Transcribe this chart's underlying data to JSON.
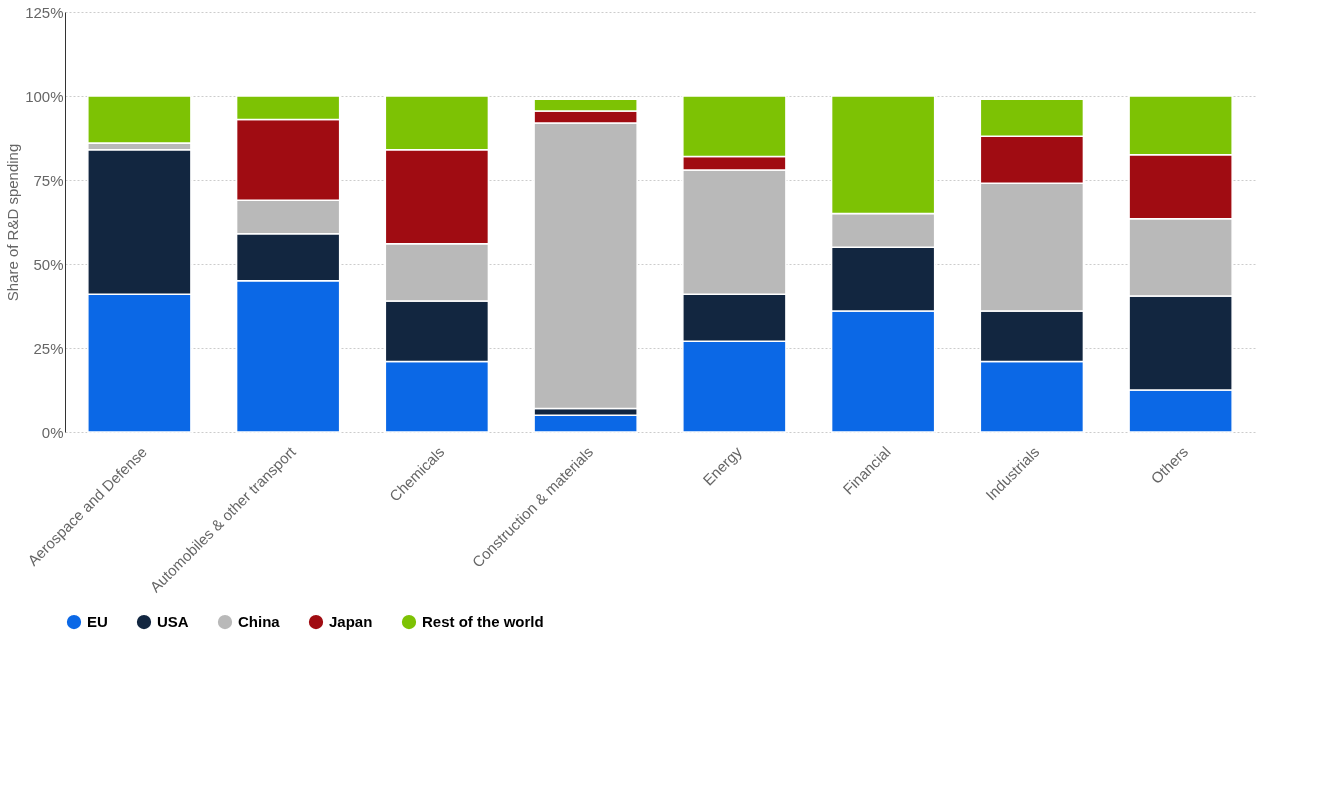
{
  "chart_data": {
    "type": "bar",
    "stacked": true,
    "ylabel": "Share of R&D spending",
    "categories": [
      "Aerospace and Defense",
      "Automobiles & other transport",
      "Chemicals",
      "Construction & materials",
      "Energy",
      "Financial",
      "Industrials",
      "Others"
    ],
    "series": [
      {
        "name": "EU",
        "color": "#0b68e6",
        "values": [
          41,
          45,
          21,
          5,
          27,
          36,
          21,
          12.5
        ]
      },
      {
        "name": "USA",
        "color": "#122640",
        "values": [
          43,
          14,
          18,
          2,
          14,
          19,
          15,
          28
        ]
      },
      {
        "name": "China",
        "color": "#b9b9b9",
        "values": [
          2,
          10,
          17,
          85,
          37,
          10,
          38,
          23
        ]
      },
      {
        "name": "Japan",
        "color": "#a00c12",
        "values": [
          0,
          24,
          28,
          3.5,
          4,
          0,
          14,
          19
        ]
      },
      {
        "name": "Rest of the world",
        "color": "#7dc204",
        "values": [
          14,
          7,
          16,
          3.5,
          18,
          35,
          11,
          17.5
        ]
      }
    ],
    "ylim": [
      0,
      125
    ],
    "yticks": [
      {
        "value": 0,
        "label": "0%"
      },
      {
        "value": 25,
        "label": "25%"
      },
      {
        "value": 50,
        "label": "50%"
      },
      {
        "value": 75,
        "label": "75%"
      },
      {
        "value": 100,
        "label": "100%"
      },
      {
        "value": 125,
        "label": "125%"
      }
    ],
    "grid": "y",
    "legend": "bottom"
  }
}
